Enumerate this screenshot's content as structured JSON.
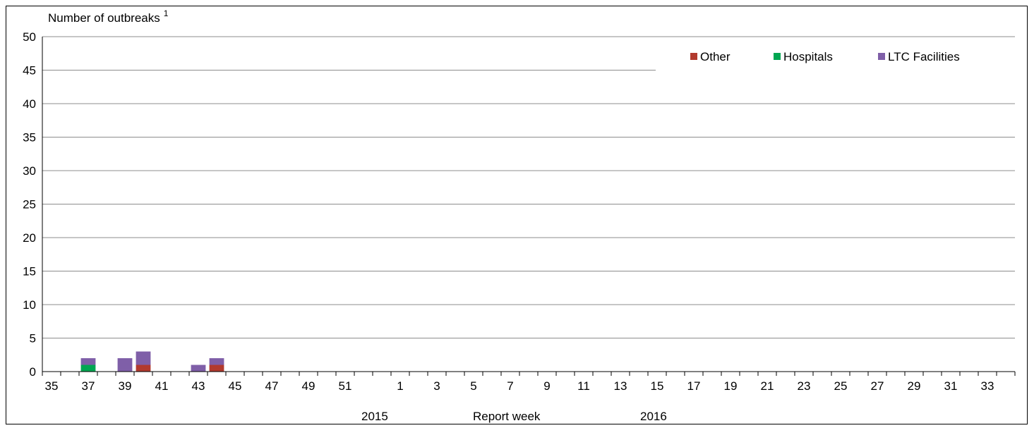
{
  "chart_data": {
    "type": "bar",
    "stacked": true,
    "ylabel": "Number of outbreaks",
    "ylabel_superscript": "1",
    "xlabel": "Report week",
    "year_labels": [
      "2015",
      "2016"
    ],
    "ylim": [
      0,
      50
    ],
    "yticks": [
      0,
      5,
      10,
      15,
      20,
      25,
      30,
      35,
      40,
      45,
      50
    ],
    "grid": true,
    "legend_position": "top-right",
    "categories": [
      35,
      36,
      37,
      38,
      39,
      40,
      41,
      42,
      43,
      44,
      45,
      46,
      47,
      48,
      49,
      50,
      51,
      52,
      53,
      1,
      2,
      3,
      4,
      5,
      6,
      7,
      8,
      9,
      10,
      11,
      12,
      13,
      14,
      15,
      16,
      17,
      18,
      19,
      20,
      21,
      22,
      23,
      24,
      25,
      26,
      27,
      28,
      29,
      30,
      31,
      32,
      33,
      34
    ],
    "tick_labels": [
      35,
      37,
      39,
      41,
      43,
      45,
      47,
      49,
      51,
      1,
      3,
      5,
      7,
      9,
      11,
      13,
      15,
      17,
      19,
      21,
      23,
      25,
      27,
      29,
      31,
      33
    ],
    "series": [
      {
        "name": "Other",
        "color": "#b23a2e",
        "values": [
          0,
          0,
          0,
          0,
          0,
          1,
          0,
          0,
          0,
          1,
          0,
          0,
          0,
          0,
          0,
          0,
          0,
          0,
          0,
          0,
          0,
          0,
          0,
          0,
          0,
          0,
          0,
          0,
          0,
          0,
          0,
          0,
          0,
          0,
          0,
          0,
          0,
          0,
          0,
          0,
          0,
          0,
          0,
          0,
          0,
          0,
          0,
          0,
          0,
          0,
          0,
          0,
          0
        ]
      },
      {
        "name": "Hospitals",
        "color": "#00a651",
        "values": [
          0,
          0,
          1,
          0,
          0,
          0,
          0,
          0,
          0,
          0,
          0,
          0,
          0,
          0,
          0,
          0,
          0,
          0,
          0,
          0,
          0,
          0,
          0,
          0,
          0,
          0,
          0,
          0,
          0,
          0,
          0,
          0,
          0,
          0,
          0,
          0,
          0,
          0,
          0,
          0,
          0,
          0,
          0,
          0,
          0,
          0,
          0,
          0,
          0,
          0,
          0,
          0,
          0
        ]
      },
      {
        "name": "LTC Facilities",
        "color": "#7f5fa8",
        "values": [
          0,
          0,
          1,
          0,
          2,
          2,
          0,
          0,
          1,
          1,
          0,
          0,
          0,
          0,
          0,
          0,
          0,
          0,
          0,
          0,
          0,
          0,
          0,
          0,
          0,
          0,
          0,
          0,
          0,
          0,
          0,
          0,
          0,
          0,
          0,
          0,
          0,
          0,
          0,
          0,
          0,
          0,
          0,
          0,
          0,
          0,
          0,
          0,
          0,
          0,
          0,
          0,
          0
        ]
      }
    ]
  }
}
